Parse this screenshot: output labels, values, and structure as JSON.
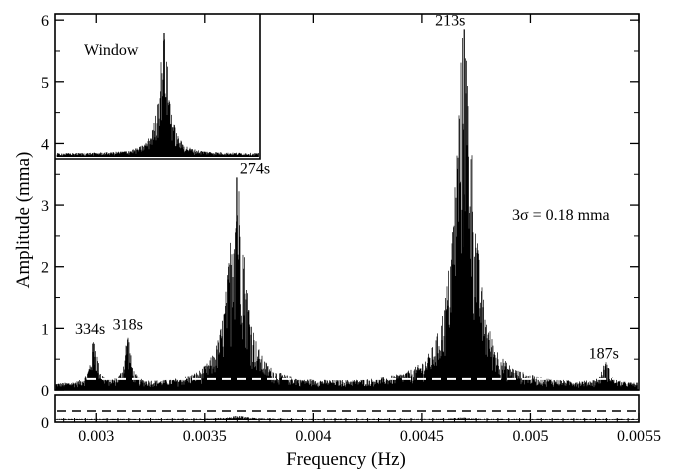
{
  "chart_data": {
    "type": "line",
    "xlabel": "Frequency (Hz)",
    "ylabel": "Amplitude (mma)",
    "xlim": [
      0.00281,
      0.0055
    ],
    "ylim": [
      0,
      6.1
    ],
    "x_ticks": [
      0.003,
      0.0035,
      0.004,
      0.0045,
      0.005,
      0.0055
    ],
    "x_tick_labels": [
      "0.003",
      "0.0035",
      "0.004",
      "0.0045",
      "0.005",
      "0.0055"
    ],
    "y_ticks": [
      0,
      1,
      2,
      3,
      4,
      5,
      6
    ],
    "y_tick_labels": [
      "0",
      "1",
      "2",
      "3",
      "4",
      "5",
      "6"
    ],
    "significance_label": "3σ = 0.18 mma",
    "significance_level": 0.18,
    "peaks": [
      {
        "label": "334s",
        "x": 0.00299,
        "amplitude": 0.75
      },
      {
        "label": "318s",
        "x": 0.003145,
        "amplitude": 0.82
      },
      {
        "label": "274s",
        "x": 0.003648,
        "amplitude": 3.45
      },
      {
        "label": "213s",
        "x": 0.004695,
        "amplitude": 5.85
      },
      {
        "label": "187s",
        "x": 0.005347,
        "amplitude": 0.35
      }
    ],
    "inset": {
      "label": "Window"
    },
    "residual_panel": {
      "y_tick_labels": [
        "0"
      ]
    }
  }
}
